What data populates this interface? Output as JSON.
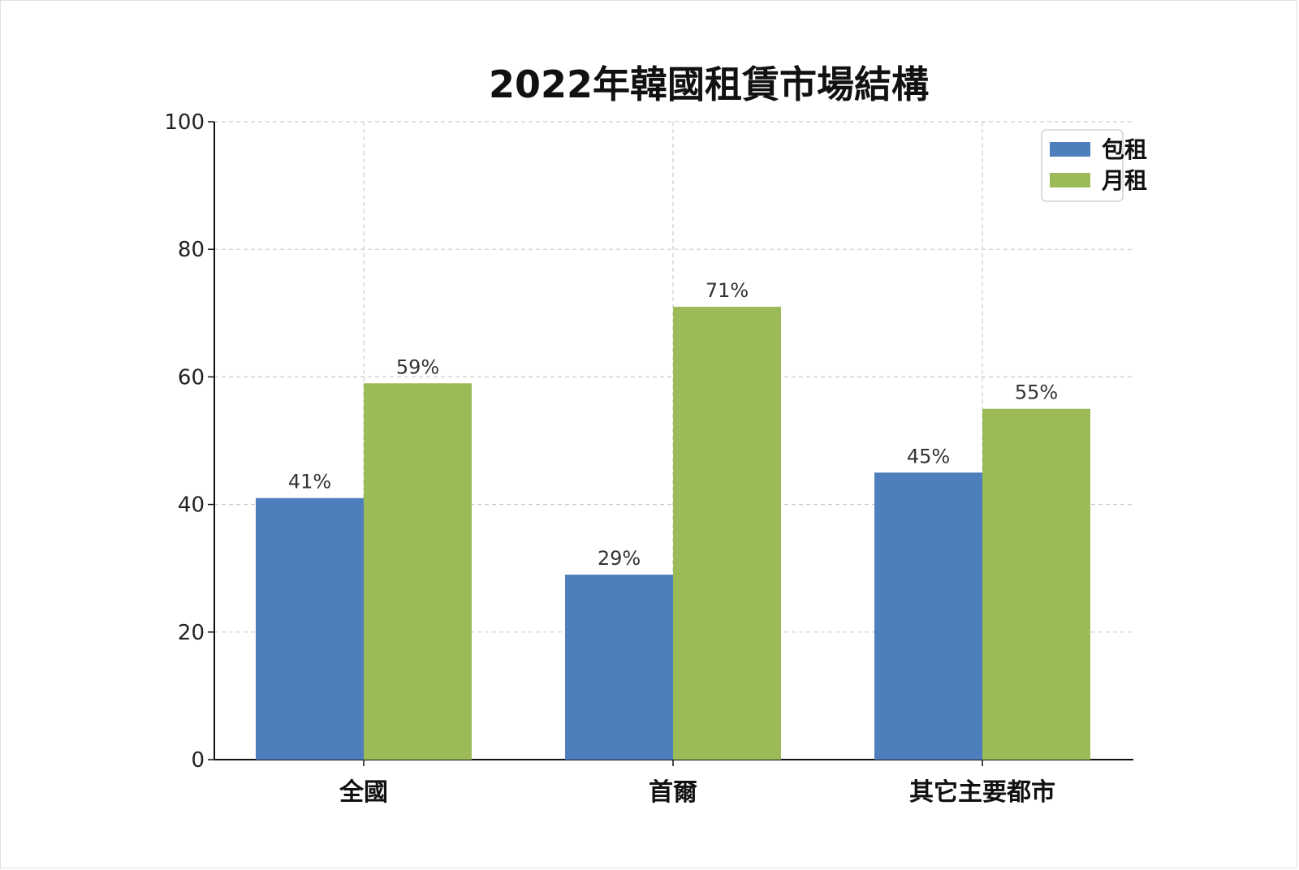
{
  "chart_data": {
    "type": "bar",
    "title": "2022年韓國租賃市場結構",
    "xlabel": "",
    "ylabel": "",
    "categories": [
      "全國",
      "首爾",
      "其它主要都市"
    ],
    "series": [
      {
        "name": "包租",
        "values": [
          41,
          29,
          45
        ],
        "labels": [
          "41%",
          "29%",
          "45%"
        ],
        "color": "#4e7fbc"
      },
      {
        "name": "月租",
        "values": [
          59,
          71,
          55
        ],
        "labels": [
          "59%",
          "71%",
          "55%"
        ],
        "color": "#9bbb59"
      }
    ],
    "ylim": [
      0,
      100
    ],
    "yticks": [
      0,
      20,
      40,
      60,
      80,
      100
    ],
    "grid": true,
    "legend_position": "top-right"
  }
}
